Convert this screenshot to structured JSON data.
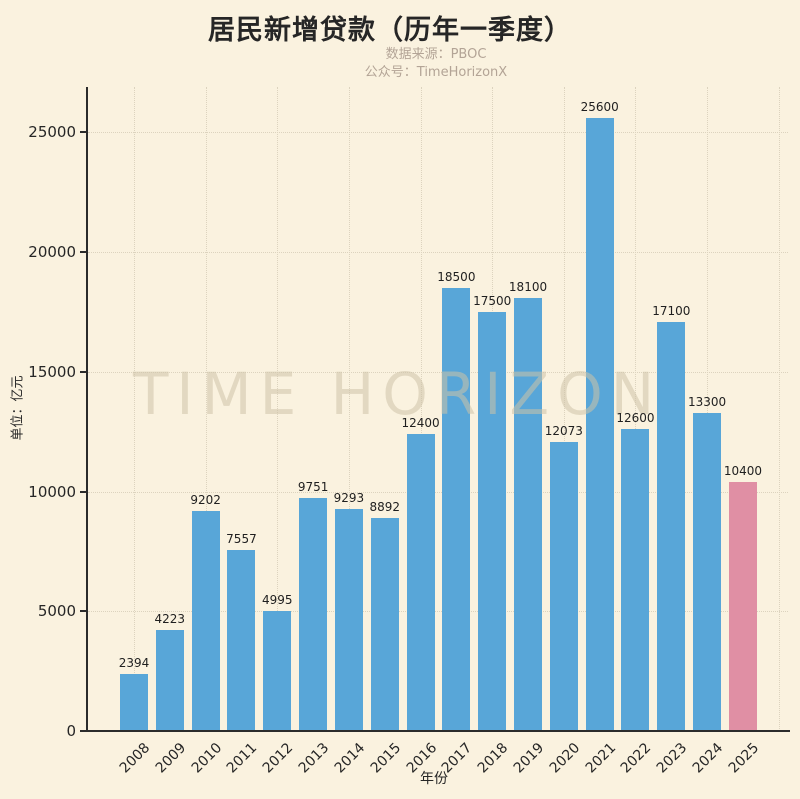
{
  "title": "居民新增贷款（历年一季度）",
  "subtitle": {
    "source": "数据来源：PBOC",
    "account": "公众号：TimeHorizonX"
  },
  "watermark": "TIME HORIZON",
  "colors": {
    "background": "#FAF2DF",
    "bar_blue": "#58A6D8",
    "bar_pink": "#E08FA4",
    "text_dark": "#262626",
    "subtitle_gray": "#B3A496",
    "gridline": "#DCD3BE"
  },
  "chart_data": {
    "type": "bar",
    "title": "居民新增贷款（历年一季度）",
    "categories": [
      "2008",
      "2009",
      "2010",
      "2011",
      "2012",
      "2013",
      "2014",
      "2015",
      "2016",
      "2017",
      "2018",
      "2019",
      "2020",
      "2021",
      "2022",
      "2023",
      "2024",
      "2025"
    ],
    "values": [
      2394,
      4223,
      9202,
      7557,
      4995,
      9751,
      9293,
      8892,
      12400,
      18500,
      17500,
      18100,
      12073,
      25600,
      12600,
      17100,
      13300,
      10400
    ],
    "xlabel": "年份",
    "ylabel": "单位：亿元",
    "ylim": [
      0,
      26900
    ],
    "yticks": [
      0,
      5000,
      10000,
      15000,
      20000,
      25000
    ],
    "grid": true,
    "value_labels": true,
    "legend": "none",
    "bar_color": "#58A6D8",
    "highlight_category": "2025",
    "highlight_color": "#E08FA4"
  }
}
